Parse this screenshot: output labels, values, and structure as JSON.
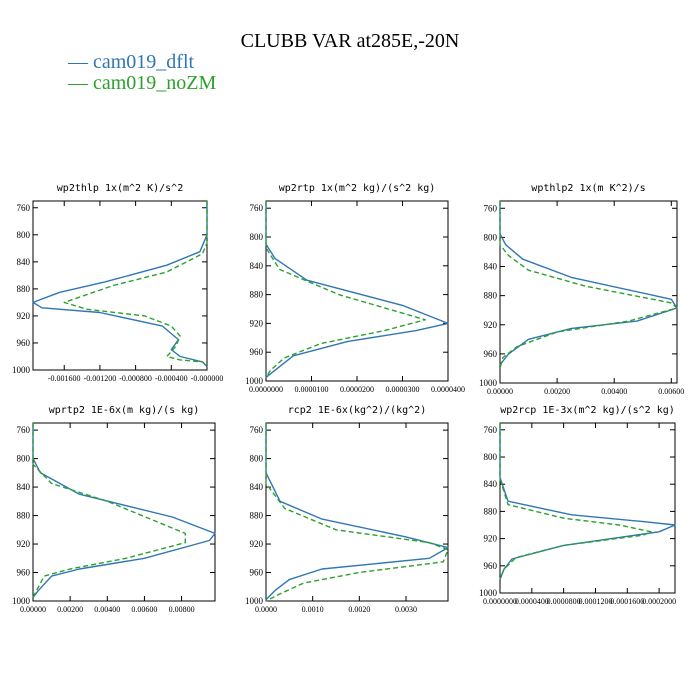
{
  "figure": {
    "title": "CLUBB VAR at285E,-20N",
    "legend": [
      {
        "label": "cam019_dflt",
        "color": "#2f77b4"
      },
      {
        "label": "cam019_noZM",
        "color": "#2ca02c"
      }
    ]
  },
  "chart_data": [
    {
      "type": "line",
      "title": "wp2thlp   1x(m^2 K)/s^2",
      "ylim": [
        1000,
        750
      ],
      "xlim": [
        -0.00195,
        0.0
      ],
      "yticks": [
        760,
        800,
        840,
        880,
        920,
        960,
        1000
      ],
      "xticks": [
        -0.0016,
        -0.0012,
        -0.0008,
        -0.0004,
        0.0
      ],
      "xticklabels": [
        "-0.001600",
        "-0.001200",
        "-0.000800",
        "-0.000400",
        "-0.000000"
      ],
      "series": [
        {
          "color": "#2f77b4",
          "dash": "",
          "points": [
            [
              0.0,
              750
            ],
            [
              0.0,
              800
            ],
            [
              -8e-05,
              825
            ],
            [
              -0.00045,
              845
            ],
            [
              -0.00115,
              870
            ],
            [
              -0.00165,
              885
            ],
            [
              -0.00195,
              900
            ],
            [
              -0.00185,
              908
            ],
            [
              -0.0012,
              915
            ],
            [
              -0.0005,
              935
            ],
            [
              -0.00032,
              955
            ],
            [
              -0.0004,
              970
            ],
            [
              -0.0003,
              980
            ],
            [
              -5e-05,
              988
            ],
            [
              0.0,
              995
            ]
          ]
        },
        {
          "color": "#2ca02c",
          "dash": "5,3",
          "points": [
            [
              0.0,
              750
            ],
            [
              0.0,
              812
            ],
            [
              -5e-05,
              828
            ],
            [
              -0.00045,
              855
            ],
            [
              -0.00105,
              875
            ],
            [
              -0.0016,
              900
            ],
            [
              -0.00135,
              910
            ],
            [
              -0.0007,
              920
            ],
            [
              -0.0004,
              935
            ],
            [
              -0.0003,
              950
            ],
            [
              -0.00035,
              965
            ],
            [
              -0.00045,
              980
            ],
            [
              -0.0003,
              985
            ],
            [
              -5e-05,
              988
            ],
            [
              0.0,
              995
            ]
          ]
        }
      ]
    },
    {
      "type": "line",
      "title": "wp2rtp   1x(m^2 kg)/(s^2 kg)",
      "ylim": [
        1000,
        750
      ],
      "xlim": [
        0.0,
        4e-05
      ],
      "yticks": [
        760,
        800,
        840,
        880,
        920,
        960,
        1000
      ],
      "xticks": [
        0.0,
        1e-05,
        2e-05,
        3e-05,
        4e-05
      ],
      "xticklabels": [
        "0.0000000",
        "0.0000100",
        "0.0000200",
        "0.0000300",
        "0.0000400"
      ],
      "series": [
        {
          "color": "#2f77b4",
          "dash": "",
          "points": [
            [
              0.0,
              750
            ],
            [
              0.0,
              810
            ],
            [
              2e-06,
              830
            ],
            [
              9e-06,
              860
            ],
            [
              3e-05,
              895
            ],
            [
              4e-05,
              920
            ],
            [
              3.3e-05,
              930
            ],
            [
              1.8e-05,
              945
            ],
            [
              6e-06,
              965
            ],
            [
              2e-06,
              985
            ],
            [
              0.0,
              995
            ]
          ]
        },
        {
          "color": "#2ca02c",
          "dash": "5,3",
          "points": [
            [
              0.0,
              750
            ],
            [
              0.0,
              815
            ],
            [
              3e-06,
              845
            ],
            [
              1.6e-05,
              880
            ],
            [
              3.5e-05,
              915
            ],
            [
              2.6e-05,
              930
            ],
            [
              1.2e-05,
              948
            ],
            [
              4e-06,
              968
            ],
            [
              1e-06,
              985
            ],
            [
              0.0,
              995
            ]
          ]
        }
      ]
    },
    {
      "type": "line",
      "title": "wpthlp2   1x(m K^2)/s",
      "ylim": [
        1000,
        750
      ],
      "xlim": [
        0.0,
        0.0062
      ],
      "yticks": [
        760,
        800,
        840,
        880,
        920,
        960,
        1000
      ],
      "xticks": [
        0.0,
        0.002,
        0.004,
        0.006
      ],
      "xticklabels": [
        "0.00000",
        "0.00200",
        "0.00400",
        "0.00600"
      ],
      "series": [
        {
          "color": "#2f77b4",
          "dash": "",
          "points": [
            [
              0.0,
              750
            ],
            [
              0.0,
              795
            ],
            [
              0.0002,
              810
            ],
            [
              0.0008,
              830
            ],
            [
              0.0025,
              855
            ],
            [
              0.006,
              885
            ],
            [
              0.0062,
              897
            ],
            [
              0.0048,
              915
            ],
            [
              0.0025,
              925
            ],
            [
              0.001,
              940
            ],
            [
              0.0003,
              960
            ],
            [
              0.0,
              975
            ]
          ]
        },
        {
          "color": "#2ca02c",
          "dash": "5,3",
          "points": [
            [
              0.0,
              750
            ],
            [
              0.0,
              810
            ],
            [
              0.0003,
              825
            ],
            [
              0.001,
              845
            ],
            [
              0.003,
              867
            ],
            [
              0.006,
              890
            ],
            [
              0.0062,
              897
            ],
            [
              0.0045,
              915
            ],
            [
              0.002,
              930
            ],
            [
              0.0006,
              950
            ],
            [
              0.0001,
              965
            ],
            [
              0.0,
              980
            ]
          ]
        }
      ]
    },
    {
      "type": "line",
      "title": "wprtp2   1E-6x(m kg)/(s kg)",
      "ylim": [
        1000,
        750
      ],
      "xlim": [
        0.0,
        0.0098
      ],
      "yticks": [
        760,
        800,
        840,
        880,
        920,
        960,
        1000
      ],
      "xticks": [
        0.0,
        0.002,
        0.004,
        0.006,
        0.008
      ],
      "xticklabels": [
        "0.00000",
        "0.00200",
        "0.00400",
        "0.00600",
        "0.00800"
      ],
      "series": [
        {
          "color": "#2f77b4",
          "dash": "",
          "points": [
            [
              0.0,
              750
            ],
            [
              0.0,
              800
            ],
            [
              0.0004,
              820
            ],
            [
              0.0025,
              850
            ],
            [
              0.0075,
              882
            ],
            [
              0.0098,
              905
            ],
            [
              0.0095,
              915
            ],
            [
              0.006,
              940
            ],
            [
              0.0025,
              955
            ],
            [
              0.001,
              965
            ],
            [
              0.0003,
              985
            ],
            [
              0.0,
              995
            ]
          ]
        },
        {
          "color": "#2ca02c",
          "dash": "5,3",
          "points": [
            [
              0.0,
              750
            ],
            [
              0.0,
              808
            ],
            [
              0.001,
              835
            ],
            [
              0.004,
              860
            ],
            [
              0.0082,
              905
            ],
            [
              0.0082,
              918
            ],
            [
              0.005,
              940
            ],
            [
              0.002,
              955
            ],
            [
              0.0006,
              965
            ],
            [
              0.0002,
              985
            ],
            [
              0.0,
              995
            ]
          ]
        }
      ]
    },
    {
      "type": "line",
      "title": "rcp2   1E-6x(kg^2)/(kg^2)",
      "ylim": [
        1000,
        750
      ],
      "xlim": [
        0.0,
        0.0039
      ],
      "yticks": [
        760,
        800,
        840,
        880,
        920,
        960,
        1000
      ],
      "xticks": [
        0.0,
        0.001,
        0.002,
        0.003
      ],
      "xticklabels": [
        "0.0000",
        "0.0010",
        "0.0020",
        "0.0030"
      ],
      "series": [
        {
          "color": "#2f77b4",
          "dash": "",
          "points": [
            [
              0.0,
              750
            ],
            [
              0.0,
              820
            ],
            [
              0.0003,
              860
            ],
            [
              0.0012,
              885
            ],
            [
              0.003,
              910
            ],
            [
              0.0039,
              925
            ],
            [
              0.0035,
              940
            ],
            [
              0.0012,
              955
            ],
            [
              0.0005,
              970
            ],
            [
              0.0002,
              985
            ],
            [
              0.0,
              998
            ]
          ]
        },
        {
          "color": "#2ca02c",
          "dash": "5,3",
          "points": [
            [
              0.0,
              750
            ],
            [
              0.0,
              835
            ],
            [
              0.0004,
              870
            ],
            [
              0.0015,
              900
            ],
            [
              0.0035,
              918
            ],
            [
              0.0039,
              928
            ],
            [
              0.0038,
              945
            ],
            [
              0.002,
              960
            ],
            [
              0.0008,
              975
            ],
            [
              0.0003,
              990
            ],
            [
              0.0,
              1000
            ]
          ]
        }
      ]
    },
    {
      "type": "line",
      "title": "wp2rcp   1E-3x(m^2 kg)/(s^2 kg)",
      "ylim": [
        1000,
        750
      ],
      "xlim": [
        0.0,
        0.00022
      ],
      "yticks": [
        760,
        800,
        840,
        880,
        920,
        960,
        1000
      ],
      "xticks": [
        0.0,
        4e-05,
        8e-05,
        0.00012,
        0.00016,
        0.0002
      ],
      "xticklabels": [
        "0.0000000",
        "0.0000400",
        "0.0000800",
        "0.0001200",
        "0.0001600",
        "0.0002000"
      ],
      "series": [
        {
          "color": "#2f77b4",
          "dash": "",
          "points": [
            [
              0.0,
              750
            ],
            [
              0.0,
              830
            ],
            [
              1e-05,
              865
            ],
            [
              9e-05,
              885
            ],
            [
              0.00018,
              895
            ],
            [
              0.00022,
              900
            ],
            [
              0.0002,
              910
            ],
            [
              8e-05,
              930
            ],
            [
              1.5e-05,
              950
            ],
            [
              5e-06,
              965
            ],
            [
              0.0,
              980
            ]
          ]
        },
        {
          "color": "#2ca02c",
          "dash": "5,3",
          "points": [
            [
              0.0,
              750
            ],
            [
              0.0,
              832
            ],
            [
              1e-05,
              870
            ],
            [
              8e-05,
              890
            ],
            [
              0.00015,
              900
            ],
            [
              0.00019,
              910
            ],
            [
              0.00018,
              915
            ],
            [
              8e-05,
              930
            ],
            [
              2e-05,
              948
            ],
            [
              5e-06,
              965
            ],
            [
              0.0,
              980
            ]
          ]
        }
      ]
    }
  ]
}
